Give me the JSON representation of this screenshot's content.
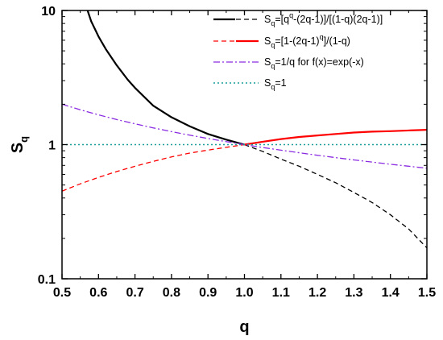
{
  "chart_data": {
    "type": "line",
    "title": "",
    "xlabel": "q",
    "ylabel": "S",
    "ylabel_subscript": "q",
    "xlim": [
      0.5,
      1.5
    ],
    "ylim": [
      0.1,
      10
    ],
    "yscale": "log",
    "grid": false,
    "legend_position": "top-right",
    "x_ticks": [
      "0.5",
      "0.6",
      "0.7",
      "0.8",
      "0.9",
      "1.0",
      "1.1",
      "1.2",
      "1.3",
      "1.4",
      "1.5"
    ],
    "y_ticks": [
      {
        "value": 0.1,
        "label": "0.1"
      },
      {
        "value": 1,
        "label": "1"
      },
      {
        "value": 10,
        "label": "10"
      }
    ],
    "series": [
      {
        "name": "S_q=[q^q-(2q-1)]/[(1-q)(2q-1)]",
        "legend_parts": [
          {
            "t": "S"
          },
          {
            "t": "q",
            "sub": true
          },
          {
            "t": "=[q"
          },
          {
            "t": "q",
            "sup": true
          },
          {
            "t": "-(2q-1)]/[(1-q)(2q-1)]"
          }
        ],
        "color": "#000000",
        "segments": [
          {
            "style": "solid",
            "width": 2.2,
            "x": [
              0.57,
              0.58,
              0.6,
              0.62,
              0.65,
              0.68,
              0.7,
              0.75,
              0.8,
              0.85,
              0.9,
              0.95,
              1.0
            ],
            "y": [
              10.0,
              8.3,
              6.4,
              5.15,
              3.9,
              3.05,
              2.65,
              1.95,
              1.6,
              1.37,
              1.2,
              1.09,
              1.0
            ]
          },
          {
            "style": "dashed",
            "width": 1.3,
            "x": [
              1.0,
              1.05,
              1.1,
              1.15,
              1.2,
              1.25,
              1.3,
              1.35,
              1.4,
              1.45,
              1.5
            ],
            "y": [
              1.0,
              0.89,
              0.78,
              0.69,
              0.6,
              0.52,
              0.44,
              0.37,
              0.3,
              0.235,
              0.17
            ]
          }
        ]
      },
      {
        "name": "S_q=[1-(2q-1)^q]/(1-q)",
        "legend_parts": [
          {
            "t": "S"
          },
          {
            "t": "q",
            "sub": true
          },
          {
            "t": "=[1-(2q-1)"
          },
          {
            "t": "q",
            "sup": true
          },
          {
            "t": "]/(1-q)"
          }
        ],
        "color": "#ff0000",
        "segments": [
          {
            "style": "dashed",
            "width": 1.3,
            "x": [
              0.5,
              0.55,
              0.6,
              0.65,
              0.7,
              0.75,
              0.8,
              0.85,
              0.9,
              0.95,
              1.0
            ],
            "y": [
              0.45,
              0.51,
              0.57,
              0.63,
              0.69,
              0.75,
              0.81,
              0.865,
              0.91,
              0.955,
              1.0
            ]
          },
          {
            "style": "solid",
            "width": 2.2,
            "x": [
              1.0,
              1.05,
              1.1,
              1.15,
              1.2,
              1.25,
              1.3,
              1.35,
              1.4,
              1.45,
              1.5
            ],
            "y": [
              1.0,
              1.05,
              1.1,
              1.14,
              1.17,
              1.2,
              1.23,
              1.25,
              1.26,
              1.275,
              1.29
            ]
          }
        ]
      },
      {
        "name": "S_q=1/q for f(x)=exp(-x)",
        "legend_parts": [
          {
            "t": "S"
          },
          {
            "t": "q",
            "sub": true
          },
          {
            "t": "=1/q  for  f(x)=exp(-x)"
          }
        ],
        "color": "#8a2be2",
        "segments": [
          {
            "style": "dashdot",
            "width": 1.3,
            "x": [
              0.5,
              0.55,
              0.6,
              0.65,
              0.7,
              0.75,
              0.8,
              0.85,
              0.9,
              0.95,
              1.0,
              1.05,
              1.1,
              1.15,
              1.2,
              1.25,
              1.3,
              1.35,
              1.4,
              1.45,
              1.5
            ],
            "y": [
              2.0,
              1.818,
              1.667,
              1.538,
              1.429,
              1.333,
              1.25,
              1.176,
              1.111,
              1.053,
              1.0,
              0.952,
              0.909,
              0.87,
              0.833,
              0.8,
              0.769,
              0.741,
              0.714,
              0.69,
              0.667
            ]
          }
        ]
      },
      {
        "name": "S_q=1",
        "legend_parts": [
          {
            "t": "S"
          },
          {
            "t": "q",
            "sub": true
          },
          {
            "t": "=1"
          }
        ],
        "color": "#1a9e9e",
        "segments": [
          {
            "style": "dotted",
            "width": 1.5,
            "x": [
              0.5,
              1.5
            ],
            "y": [
              1.0,
              1.0
            ]
          }
        ]
      }
    ]
  }
}
